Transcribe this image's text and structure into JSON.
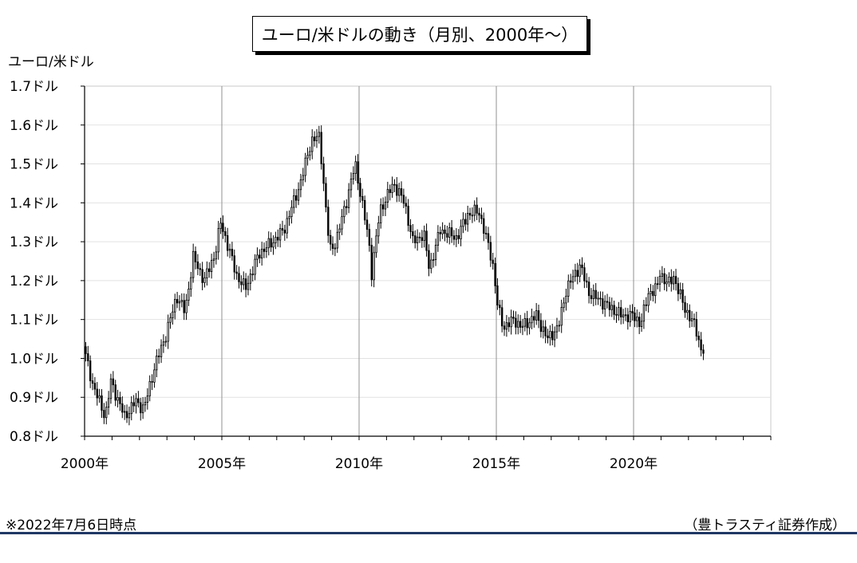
{
  "header": {
    "title": "ユーロ/米ドルの動き（月別、2000年〜）"
  },
  "footer": {
    "note": "※2022年7月6日時点",
    "credit": "（豊トラスティ証券作成）"
  },
  "chart_data": {
    "type": "candlestick",
    "title": "ユーロ/米ドルの動き（月別、2000年〜）",
    "ylabel": "ユーロ/米ドル",
    "ylim": [
      0.8,
      1.7
    ],
    "y_ticks": [
      0.8,
      0.9,
      1.0,
      1.1,
      1.2,
      1.3,
      1.4,
      1.5,
      1.6,
      1.7
    ],
    "y_tick_labels": [
      "0.8ドル",
      "0.9ドル",
      "1.0ドル",
      "1.1ドル",
      "1.2ドル",
      "1.3ドル",
      "1.4ドル",
      "1.5ドル",
      "1.6ドル",
      "1.7ドル"
    ],
    "xlim": [
      2000,
      2025
    ],
    "x_ticks": [
      2000,
      2005,
      2010,
      2015,
      2020
    ],
    "x_tick_labels": [
      "2000年",
      "2005年",
      "2010年",
      "2015年",
      "2020年"
    ],
    "grid": true,
    "series": [
      {
        "frequency": "monthly",
        "anchors": [
          [
            2000.0,
            1.03
          ],
          [
            2000.35,
            0.93
          ],
          [
            2000.8,
            0.85
          ],
          [
            2001.0,
            0.94
          ],
          [
            2001.5,
            0.85
          ],
          [
            2001.9,
            0.89
          ],
          [
            2002.2,
            0.87
          ],
          [
            2002.6,
            0.98
          ],
          [
            2003.0,
            1.06
          ],
          [
            2003.4,
            1.16
          ],
          [
            2003.7,
            1.12
          ],
          [
            2004.0,
            1.26
          ],
          [
            2004.4,
            1.2
          ],
          [
            2004.8,
            1.27
          ],
          [
            2005.0,
            1.35
          ],
          [
            2005.6,
            1.21
          ],
          [
            2005.9,
            1.18
          ],
          [
            2006.4,
            1.27
          ],
          [
            2006.9,
            1.3
          ],
          [
            2007.3,
            1.33
          ],
          [
            2007.9,
            1.45
          ],
          [
            2008.3,
            1.56
          ],
          [
            2008.6,
            1.57
          ],
          [
            2008.9,
            1.33
          ],
          [
            2009.0,
            1.28
          ],
          [
            2009.2,
            1.3
          ],
          [
            2009.6,
            1.41
          ],
          [
            2009.9,
            1.5
          ],
          [
            2010.4,
            1.3
          ],
          [
            2010.5,
            1.22
          ],
          [
            2010.8,
            1.38
          ],
          [
            2011.3,
            1.45
          ],
          [
            2011.7,
            1.4
          ],
          [
            2012.0,
            1.3
          ],
          [
            2012.4,
            1.32
          ],
          [
            2012.6,
            1.23
          ],
          [
            2013.0,
            1.33
          ],
          [
            2013.6,
            1.31
          ],
          [
            2014.0,
            1.37
          ],
          [
            2014.4,
            1.38
          ],
          [
            2014.9,
            1.25
          ],
          [
            2015.1,
            1.13
          ],
          [
            2015.3,
            1.08
          ],
          [
            2015.7,
            1.1
          ],
          [
            2015.95,
            1.08
          ],
          [
            2016.5,
            1.11
          ],
          [
            2016.9,
            1.05
          ],
          [
            2017.3,
            1.08
          ],
          [
            2017.6,
            1.18
          ],
          [
            2018.1,
            1.24
          ],
          [
            2018.4,
            1.17
          ],
          [
            2019.0,
            1.14
          ],
          [
            2019.6,
            1.11
          ],
          [
            2020.0,
            1.11
          ],
          [
            2020.3,
            1.09
          ],
          [
            2020.6,
            1.17
          ],
          [
            2020.9,
            1.18
          ],
          [
            2021.0,
            1.22
          ],
          [
            2021.3,
            1.19
          ],
          [
            2021.5,
            1.21
          ],
          [
            2021.9,
            1.13
          ],
          [
            2022.3,
            1.08
          ],
          [
            2022.51,
            1.02
          ]
        ]
      }
    ]
  }
}
